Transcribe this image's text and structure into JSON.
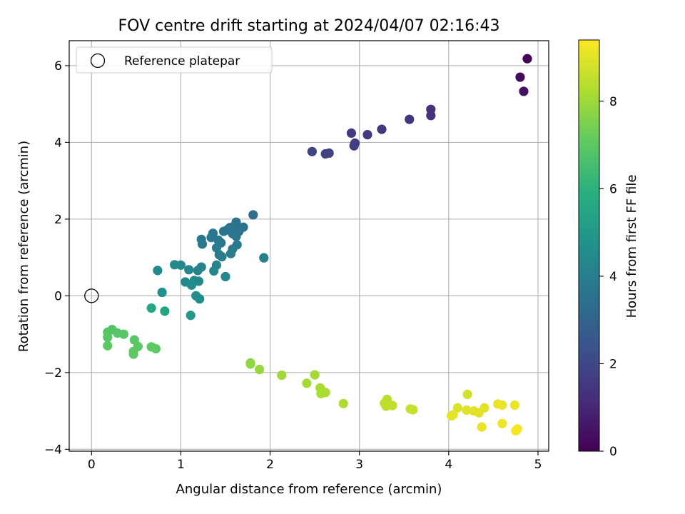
{
  "chart_data": {
    "type": "scatter",
    "title": "FOV centre drift starting at 2024/04/07 02:16:43",
    "xlabel": "Angular distance from reference (arcmin)",
    "ylabel": "Rotation from reference (arcmin)",
    "colorbar_label": "Hours from first FF file",
    "xlim": [
      -0.25,
      5.12
    ],
    "ylim": [
      -4.05,
      6.65
    ],
    "xticks": [
      0,
      1,
      2,
      3,
      4,
      5
    ],
    "xtick_labels": [
      "0",
      "1",
      "2",
      "3",
      "4",
      "5"
    ],
    "yticks": [
      -4,
      -2,
      0,
      2,
      4,
      6
    ],
    "ytick_labels": [
      "−4",
      "−2",
      "0",
      "2",
      "4",
      "6"
    ],
    "colorbar_range": [
      0,
      9.4
    ],
    "colorbar_ticks": [
      0,
      2,
      4,
      6,
      8
    ],
    "colorbar_tick_labels": [
      "0",
      "2",
      "4",
      "6",
      "8"
    ],
    "colormap": "viridis",
    "grid": true,
    "legend": {
      "placement": "top-left",
      "entries": [
        "Reference platepar"
      ]
    },
    "reference_point": {
      "x": 0,
      "y": 0
    },
    "points": [
      {
        "x": 4.88,
        "y": 6.18,
        "t": 0.1
      },
      {
        "x": 4.8,
        "y": 5.7,
        "t": 0.3
      },
      {
        "x": 4.84,
        "y": 5.33,
        "t": 0.4
      },
      {
        "x": 3.8,
        "y": 4.86,
        "t": 1.3
      },
      {
        "x": 3.8,
        "y": 4.7,
        "t": 1.35
      },
      {
        "x": 3.56,
        "y": 4.6,
        "t": 1.4
      },
      {
        "x": 3.25,
        "y": 4.34,
        "t": 1.5
      },
      {
        "x": 3.09,
        "y": 4.2,
        "t": 1.55
      },
      {
        "x": 2.91,
        "y": 4.24,
        "t": 1.6
      },
      {
        "x": 2.95,
        "y": 3.98,
        "t": 1.65
      },
      {
        "x": 2.94,
        "y": 3.91,
        "t": 1.7
      },
      {
        "x": 2.66,
        "y": 3.72,
        "t": 1.8
      },
      {
        "x": 2.62,
        "y": 3.7,
        "t": 1.85
      },
      {
        "x": 2.47,
        "y": 3.76,
        "t": 1.9
      },
      {
        "x": 1.81,
        "y": 2.11,
        "t": 3.4
      },
      {
        "x": 1.7,
        "y": 1.79,
        "t": 3.5
      },
      {
        "x": 1.62,
        "y": 1.92,
        "t": 3.5
      },
      {
        "x": 1.6,
        "y": 1.82,
        "t": 3.55
      },
      {
        "x": 1.55,
        "y": 1.78,
        "t": 3.55
      },
      {
        "x": 1.52,
        "y": 1.72,
        "t": 3.6
      },
      {
        "x": 1.48,
        "y": 1.68,
        "t": 3.6
      },
      {
        "x": 1.65,
        "y": 1.68,
        "t": 3.6
      },
      {
        "x": 1.58,
        "y": 1.62,
        "t": 3.65
      },
      {
        "x": 1.62,
        "y": 1.55,
        "t": 3.65
      },
      {
        "x": 1.36,
        "y": 1.63,
        "t": 3.7
      },
      {
        "x": 1.34,
        "y": 1.52,
        "t": 3.7
      },
      {
        "x": 1.23,
        "y": 1.47,
        "t": 3.75
      },
      {
        "x": 1.24,
        "y": 1.35,
        "t": 3.75
      },
      {
        "x": 1.42,
        "y": 1.45,
        "t": 3.8
      },
      {
        "x": 1.45,
        "y": 1.38,
        "t": 3.8
      },
      {
        "x": 1.63,
        "y": 1.33,
        "t": 3.8
      },
      {
        "x": 1.58,
        "y": 1.22,
        "t": 3.85
      },
      {
        "x": 1.56,
        "y": 1.1,
        "t": 3.85
      },
      {
        "x": 1.4,
        "y": 1.25,
        "t": 3.9
      },
      {
        "x": 1.43,
        "y": 1.07,
        "t": 3.9
      },
      {
        "x": 1.46,
        "y": 1.02,
        "t": 3.9
      },
      {
        "x": 1.93,
        "y": 0.99,
        "t": 4.1
      },
      {
        "x": 1.23,
        "y": 0.75,
        "t": 4.2
      },
      {
        "x": 1.19,
        "y": 0.66,
        "t": 4.2
      },
      {
        "x": 1.4,
        "y": 0.8,
        "t": 4.2
      },
      {
        "x": 1.37,
        "y": 0.65,
        "t": 4.25
      },
      {
        "x": 1.09,
        "y": 0.68,
        "t": 4.3
      },
      {
        "x": 1.0,
        "y": 0.8,
        "t": 4.35
      },
      {
        "x": 0.93,
        "y": 0.81,
        "t": 4.35
      },
      {
        "x": 0.74,
        "y": 0.66,
        "t": 4.4
      },
      {
        "x": 1.5,
        "y": 0.5,
        "t": 4.3
      },
      {
        "x": 1.05,
        "y": 0.36,
        "t": 4.4
      },
      {
        "x": 1.15,
        "y": 0.4,
        "t": 4.45
      },
      {
        "x": 1.2,
        "y": 0.38,
        "t": 4.45
      },
      {
        "x": 1.12,
        "y": 0.28,
        "t": 4.5
      },
      {
        "x": 1.17,
        "y": 0.0,
        "t": 4.6
      },
      {
        "x": 1.21,
        "y": -0.08,
        "t": 4.6
      },
      {
        "x": 0.79,
        "y": 0.09,
        "t": 4.7
      },
      {
        "x": 0.82,
        "y": -0.4,
        "t": 5.5
      },
      {
        "x": 0.67,
        "y": -0.32,
        "t": 5.6
      },
      {
        "x": 1.11,
        "y": -0.51,
        "t": 5.0
      },
      {
        "x": 0.23,
        "y": -0.88,
        "t": 6.8
      },
      {
        "x": 0.18,
        "y": -0.95,
        "t": 6.85
      },
      {
        "x": 0.18,
        "y": -1.08,
        "t": 6.9
      },
      {
        "x": 0.29,
        "y": -0.97,
        "t": 6.9
      },
      {
        "x": 0.36,
        "y": -1.0,
        "t": 6.9
      },
      {
        "x": 0.48,
        "y": -1.15,
        "t": 6.95
      },
      {
        "x": 0.52,
        "y": -1.32,
        "t": 7.0
      },
      {
        "x": 0.18,
        "y": -1.3,
        "t": 7.0
      },
      {
        "x": 0.47,
        "y": -1.45,
        "t": 7.05
      },
      {
        "x": 0.47,
        "y": -1.52,
        "t": 7.05
      },
      {
        "x": 0.67,
        "y": -1.33,
        "t": 7.0
      },
      {
        "x": 0.72,
        "y": -1.38,
        "t": 7.05
      },
      {
        "x": 1.78,
        "y": -1.75,
        "t": 7.8
      },
      {
        "x": 1.78,
        "y": -1.78,
        "t": 7.8
      },
      {
        "x": 1.88,
        "y": -1.92,
        "t": 7.9
      },
      {
        "x": 2.13,
        "y": -2.07,
        "t": 8.0
      },
      {
        "x": 2.5,
        "y": -2.06,
        "t": 8.1
      },
      {
        "x": 2.41,
        "y": -2.28,
        "t": 8.1
      },
      {
        "x": 2.56,
        "y": -2.4,
        "t": 8.15
      },
      {
        "x": 2.62,
        "y": -2.52,
        "t": 8.2
      },
      {
        "x": 2.57,
        "y": -2.55,
        "t": 8.2
      },
      {
        "x": 2.82,
        "y": -2.81,
        "t": 8.25
      },
      {
        "x": 3.31,
        "y": -2.7,
        "t": 8.4
      },
      {
        "x": 3.28,
        "y": -2.8,
        "t": 8.45
      },
      {
        "x": 3.37,
        "y": -2.86,
        "t": 8.5
      },
      {
        "x": 3.3,
        "y": -2.88,
        "t": 8.5
      },
      {
        "x": 3.57,
        "y": -2.95,
        "t": 8.6
      },
      {
        "x": 3.6,
        "y": -2.97,
        "t": 8.6
      },
      {
        "x": 4.21,
        "y": -2.57,
        "t": 8.8
      },
      {
        "x": 4.1,
        "y": -2.92,
        "t": 8.9
      },
      {
        "x": 4.2,
        "y": -2.98,
        "t": 8.95
      },
      {
        "x": 4.28,
        "y": -3.0,
        "t": 9.0
      },
      {
        "x": 4.34,
        "y": -3.05,
        "t": 9.0
      },
      {
        "x": 4.4,
        "y": -2.92,
        "t": 9.0
      },
      {
        "x": 4.05,
        "y": -3.1,
        "t": 9.05
      },
      {
        "x": 4.03,
        "y": -3.13,
        "t": 9.05
      },
      {
        "x": 4.55,
        "y": -2.82,
        "t": 9.1
      },
      {
        "x": 4.6,
        "y": -2.85,
        "t": 9.1
      },
      {
        "x": 4.74,
        "y": -2.85,
        "t": 9.15
      },
      {
        "x": 4.37,
        "y": -3.42,
        "t": 9.1
      },
      {
        "x": 4.6,
        "y": -3.33,
        "t": 9.2
      },
      {
        "x": 4.77,
        "y": -3.47,
        "t": 9.25
      },
      {
        "x": 4.75,
        "y": -3.52,
        "t": 9.3
      }
    ]
  }
}
